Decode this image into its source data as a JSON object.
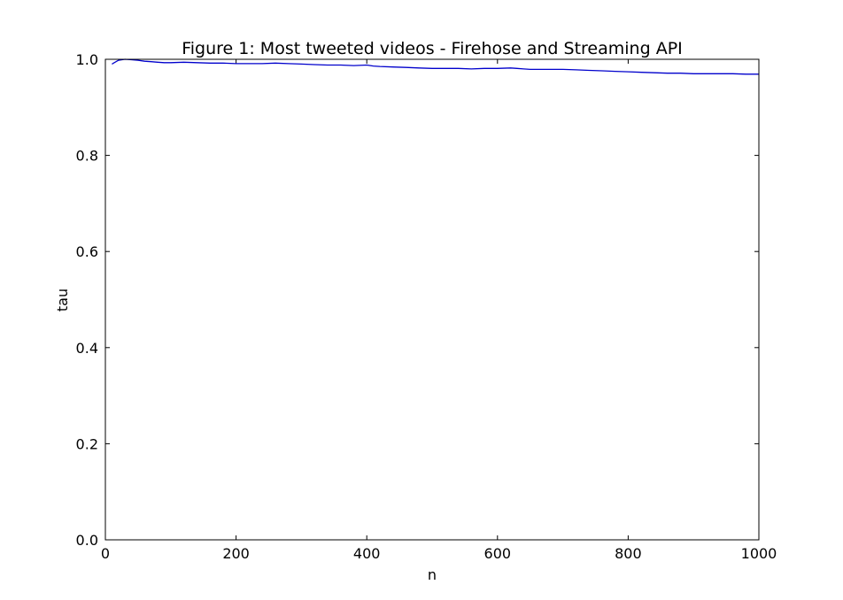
{
  "chart_data": {
    "type": "line",
    "title": "Figure 1: Most tweeted videos - Firehose and Streaming API",
    "xlabel": "n",
    "ylabel": "tau",
    "xlim": [
      0,
      1000
    ],
    "ylim": [
      0.0,
      1.0
    ],
    "grid": false,
    "x_ticks": [
      "0",
      "200",
      "400",
      "600",
      "800",
      "1000"
    ],
    "y_ticks": [
      "0.0",
      "0.2",
      "0.4",
      "0.6",
      "0.8",
      "1.0"
    ],
    "series": [
      {
        "color": "#0000cc",
        "x": [
          10,
          20,
          30,
          40,
          50,
          60,
          70,
          80,
          90,
          100,
          120,
          140,
          160,
          180,
          200,
          220,
          240,
          260,
          280,
          300,
          320,
          340,
          360,
          380,
          400,
          410,
          420,
          440,
          460,
          480,
          500,
          520,
          540,
          560,
          580,
          600,
          620,
          630,
          640,
          650,
          660,
          680,
          700,
          720,
          740,
          760,
          780,
          800,
          820,
          840,
          860,
          880,
          900,
          920,
          940,
          960,
          980,
          1000
        ],
        "y": [
          0.99,
          0.998,
          1.0,
          0.999,
          0.998,
          0.996,
          0.995,
          0.994,
          0.993,
          0.993,
          0.994,
          0.993,
          0.992,
          0.992,
          0.991,
          0.991,
          0.991,
          0.992,
          0.991,
          0.99,
          0.989,
          0.988,
          0.988,
          0.987,
          0.988,
          0.986,
          0.985,
          0.984,
          0.983,
          0.982,
          0.981,
          0.981,
          0.981,
          0.98,
          0.981,
          0.981,
          0.982,
          0.981,
          0.98,
          0.979,
          0.979,
          0.979,
          0.979,
          0.978,
          0.977,
          0.976,
          0.975,
          0.974,
          0.973,
          0.972,
          0.971,
          0.971,
          0.97,
          0.97,
          0.97,
          0.97,
          0.969,
          0.969
        ]
      }
    ]
  }
}
